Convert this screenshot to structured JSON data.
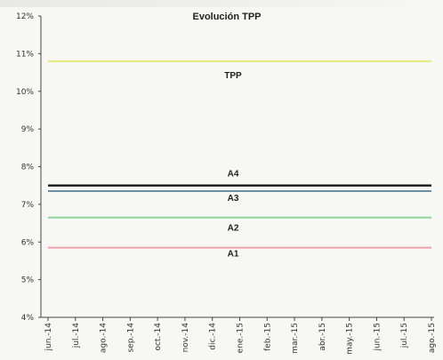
{
  "chart_data": {
    "type": "line",
    "title": "Evolución TPP",
    "xlabel": "",
    "ylabel": "",
    "categories": [
      "jun.-14",
      "jul.-14",
      "ago.-14",
      "sep.-14",
      "oct.-14",
      "nov.-14",
      "dic.-14",
      "ene.-15",
      "feb.-15",
      "mar.-15",
      "abr.-15",
      "may.-15",
      "jun.-15",
      "jul.-15",
      "ago.-15"
    ],
    "ylim": [
      4,
      12
    ],
    "yticks": [
      "4%",
      "5%",
      "6%",
      "7%",
      "8%",
      "9%",
      "10%",
      "11%",
      "12%"
    ],
    "grid": false,
    "series": [
      {
        "name": "TPP",
        "values": [
          10.8,
          10.8,
          10.8,
          10.8,
          10.8,
          10.8,
          10.8,
          10.8,
          10.8,
          10.8,
          10.8,
          10.8,
          10.8,
          10.8,
          10.8
        ],
        "color": "#e9e97a"
      },
      {
        "name": "A4",
        "values": [
          7.5,
          7.5,
          7.5,
          7.5,
          7.5,
          7.5,
          7.5,
          7.5,
          7.5,
          7.5,
          7.5,
          7.5,
          7.5,
          7.5,
          7.5
        ],
        "color": "#1a1a1a"
      },
      {
        "name": "A3",
        "values": [
          7.35,
          7.35,
          7.35,
          7.35,
          7.35,
          7.35,
          7.35,
          7.35,
          7.35,
          7.35,
          7.35,
          7.35,
          7.35,
          7.35,
          7.35
        ],
        "color": "#6c8fa8"
      },
      {
        "name": "A2",
        "values": [
          6.65,
          6.65,
          6.65,
          6.65,
          6.65,
          6.65,
          6.65,
          6.65,
          6.65,
          6.65,
          6.65,
          6.65,
          6.65,
          6.65,
          6.65
        ],
        "color": "#8fd49a"
      },
      {
        "name": "A1",
        "values": [
          5.85,
          5.85,
          5.85,
          5.85,
          5.85,
          5.85,
          5.85,
          5.85,
          5.85,
          5.85,
          5.85,
          5.85,
          5.85,
          5.85,
          5.85
        ],
        "color": "#f0a0ac"
      }
    ]
  }
}
